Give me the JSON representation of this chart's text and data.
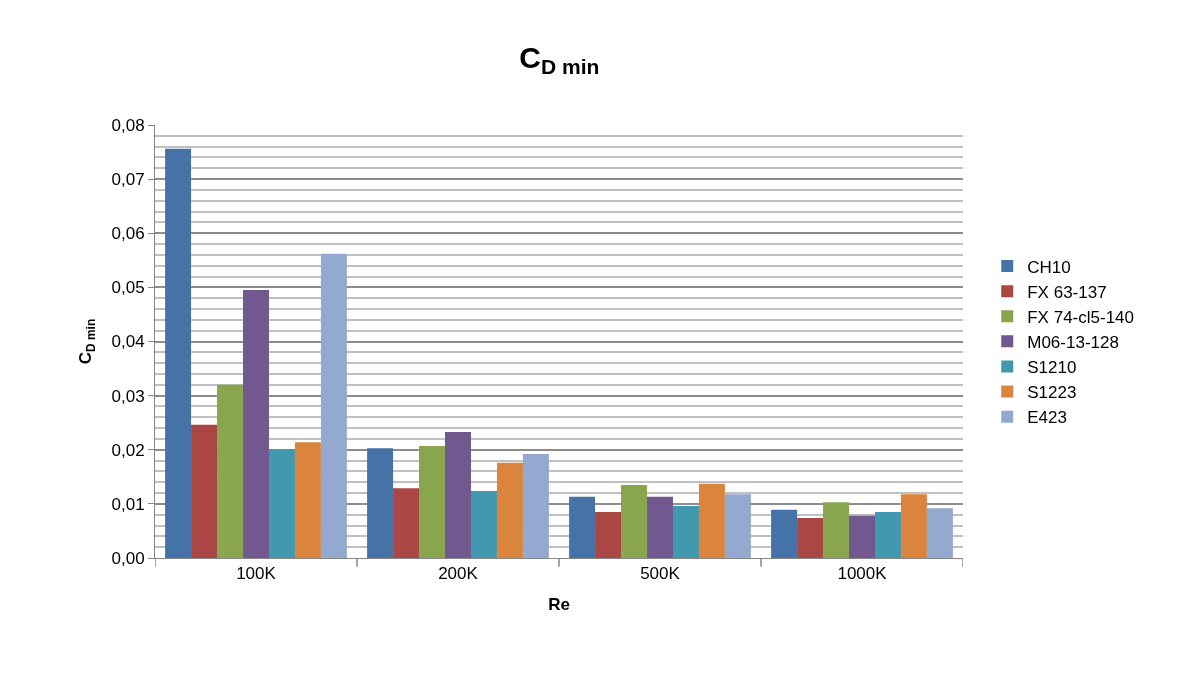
{
  "chart_data": {
    "type": "bar",
    "title": "C$_{D min}$",
    "xlabel": "Re",
    "ylabel": "C$_{D min}$",
    "categories": [
      "100K",
      "200K",
      "500K",
      "1000K"
    ],
    "series": [
      {
        "name": "CH10",
        "color": "#4572a7",
        "values": [
          0.0756,
          0.0203,
          0.0113,
          0.0089
        ]
      },
      {
        "name": "FX 63-137",
        "color": "#aa4643",
        "values": [
          0.0246,
          0.0129,
          0.0085,
          0.0074
        ]
      },
      {
        "name": "FX 74-cl5-140",
        "color": "#89a54e",
        "values": [
          0.032,
          0.0207,
          0.0135,
          0.0103
        ]
      },
      {
        "name": "M06-13-128",
        "color": "#71588f",
        "values": [
          0.0495,
          0.0233,
          0.0113,
          0.0078
        ]
      },
      {
        "name": "S1210",
        "color": "#4198af",
        "values": [
          0.0201,
          0.0124,
          0.0096,
          0.0085
        ]
      },
      {
        "name": "S1223",
        "color": "#db843d",
        "values": [
          0.0214,
          0.0176,
          0.0137,
          0.0118
        ]
      },
      {
        "name": "E423",
        "color": "#93a9cf",
        "values": [
          0.0562,
          0.0192,
          0.0118,
          0.0092
        ]
      }
    ],
    "ylim": [
      0,
      0.08
    ],
    "yticks": [
      {
        "value": 0,
        "label": "0,00"
      },
      {
        "value": 0.01,
        "label": "0,01"
      },
      {
        "value": 0.02,
        "label": "0,02"
      },
      {
        "value": 0.03,
        "label": "0,03"
      },
      {
        "value": 0.04,
        "label": "0,04"
      },
      {
        "value": 0.05,
        "label": "0,05"
      },
      {
        "value": 0.06,
        "label": "0,06"
      },
      {
        "value": 0.07,
        "label": "0,07"
      },
      {
        "value": 0.08,
        "label": "0,08"
      }
    ],
    "grid": "y",
    "legend": "right"
  }
}
